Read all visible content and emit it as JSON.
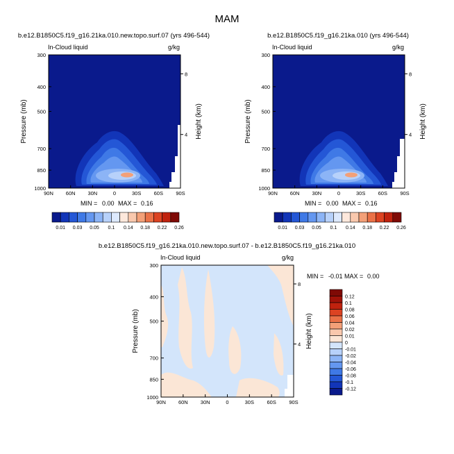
{
  "figure_title": "MAM",
  "chart_data": [
    {
      "type": "contour",
      "title": "b.e12.B1850C5.f19_g16.21ka.010.new.topo.surf.07 (yrs 496-544)",
      "left_string": "In-Cloud liquid",
      "right_string": "g/kg",
      "xlabel": "",
      "ylabel": "Pressure (mb)",
      "ylabel_right": "Height (km)",
      "x_ticks": [
        "90N",
        "60N",
        "30N",
        "0",
        "30S",
        "60S",
        "90S"
      ],
      "y_ticks": [
        "300",
        "400",
        "500",
        "700",
        "850",
        "1000"
      ],
      "y_ticks_right": [
        "8",
        "4"
      ],
      "ylim": [
        1000,
        300
      ],
      "stats": {
        "min_label": "MIN =",
        "min": "0.00",
        "max_label": "MAX =",
        "max": "0.16"
      },
      "colorbar_labels": [
        "0.01",
        "0.03",
        "0.05",
        "0.1",
        "0.14",
        "0.18",
        "0.22",
        "0.26"
      ]
    },
    {
      "type": "contour",
      "title": "b.e12.B1850C5.f19_g16.21ka.010 (yrs 496-544)",
      "left_string": "In-Cloud liquid",
      "right_string": "g/kg",
      "xlabel": "",
      "ylabel": "Pressure (mb)",
      "ylabel_right": "Height (km)",
      "x_ticks": [
        "90N",
        "60N",
        "30N",
        "0",
        "30S",
        "60S",
        "90S"
      ],
      "y_ticks": [
        "300",
        "400",
        "500",
        "700",
        "850",
        "1000"
      ],
      "y_ticks_right": [
        "8",
        "4"
      ],
      "ylim": [
        1000,
        300
      ],
      "stats": {
        "min_label": "MIN =",
        "min": "0.00",
        "max_label": "MAX =",
        "max": "0.16"
      },
      "colorbar_labels": [
        "0.01",
        "0.03",
        "0.05",
        "0.1",
        "0.14",
        "0.18",
        "0.22",
        "0.26"
      ]
    },
    {
      "type": "contour",
      "title": "b.e12.B1850C5.f19_g16.21ka.010.new.topo.surf.07 - b.e12.B1850C5.f19_g16.21ka.010",
      "left_string": "In-Cloud liquid",
      "right_string": "g/kg",
      "ylabel": "Pressure (mb)",
      "ylabel_right": "Height (km)",
      "x_ticks": [
        "90N",
        "60N",
        "30N",
        "0",
        "30S",
        "60S",
        "90S"
      ],
      "y_ticks": [
        "300",
        "400",
        "500",
        "700",
        "850",
        "1000"
      ],
      "y_ticks_right": [
        "8",
        "4"
      ],
      "ylim": [
        1000,
        300
      ],
      "stats": {
        "min_label": "MIN =",
        "min": "-0.01",
        "max_label": "MAX =",
        "max": "0.00"
      },
      "colorbar_labels": [
        "0.12",
        "0.1",
        "0.08",
        "0.06",
        "0.04",
        "0.02",
        "0.01",
        "0",
        "-0.01",
        "-0.02",
        "-0.04",
        "-0.06",
        "-0.08",
        "-0.1",
        "-0.12"
      ]
    }
  ],
  "colors": {
    "levels_seq": [
      "#0a1a8c",
      "#1235b8",
      "#2457d6",
      "#3f79e6",
      "#6497f0",
      "#8cb4f6",
      "#b7d1fa",
      "#dde9fd",
      "#fde8dc",
      "#f9c8ad",
      "#f3a078",
      "#ea7147",
      "#dc4322",
      "#c0220e",
      "#7f0a05"
    ],
    "diff_neg": "#d3e5fb",
    "diff_pos": "#fbe6d6",
    "frame": "#000000"
  }
}
